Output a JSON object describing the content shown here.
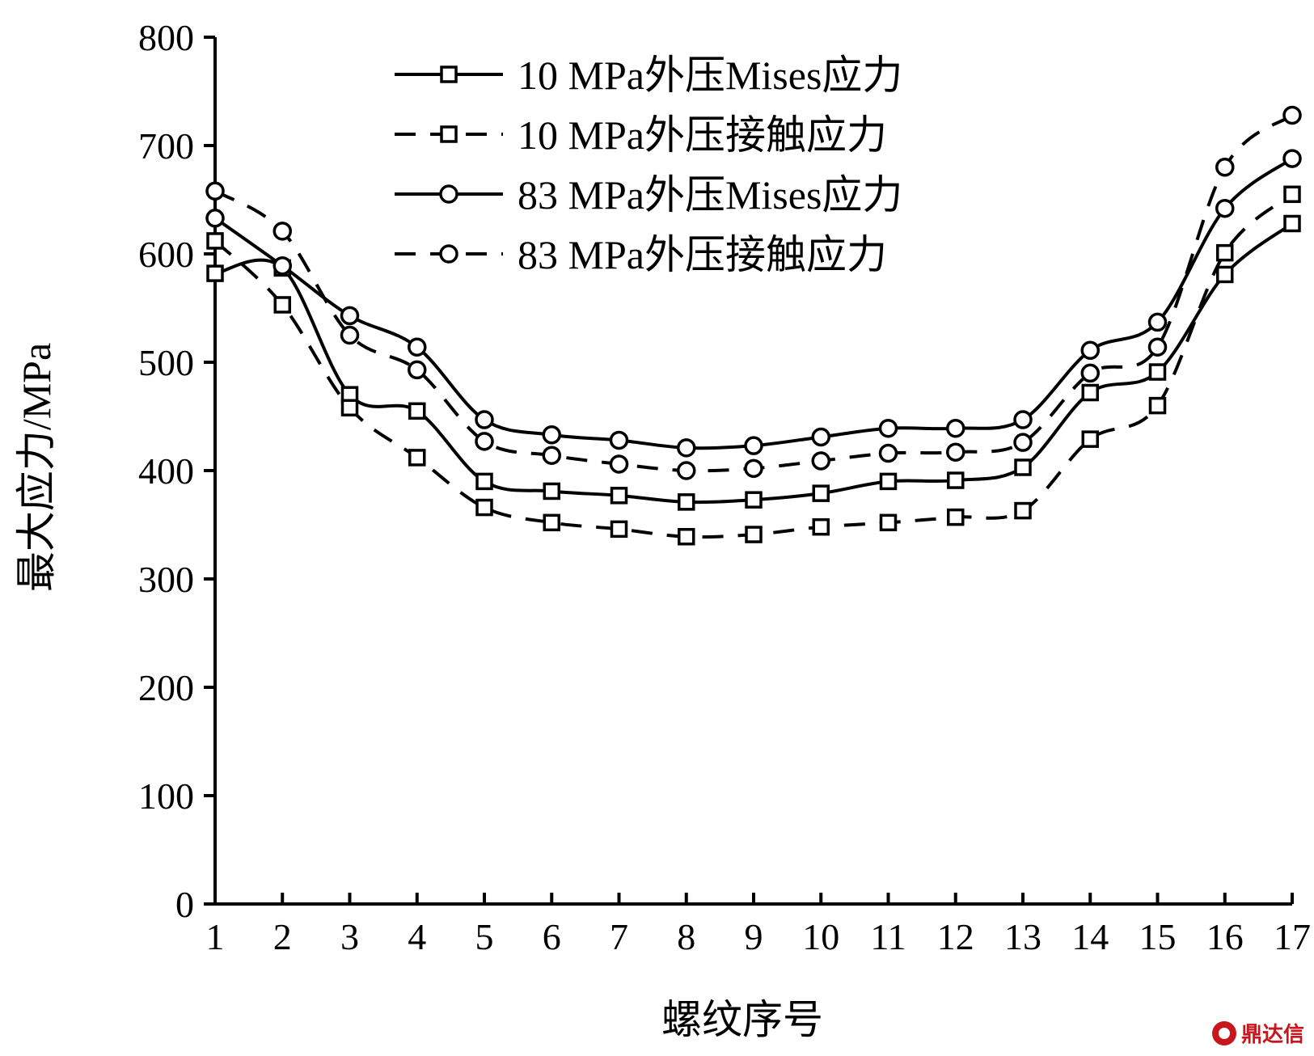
{
  "chart_data": {
    "type": "line",
    "xlabel": "螺纹序号",
    "ylabel": "最大应力/MPa",
    "x": [
      1,
      2,
      3,
      4,
      5,
      6,
      7,
      8,
      9,
      10,
      11,
      12,
      13,
      14,
      15,
      16,
      17
    ],
    "xlim": [
      1,
      17
    ],
    "ylim": [
      0,
      800
    ],
    "yticks": [
      0,
      100,
      200,
      300,
      400,
      500,
      600,
      700,
      800
    ],
    "grid": false,
    "legend_position": "top-center",
    "series": [
      {
        "name": "10 MPa外压Mises应力",
        "line_style": "solid",
        "marker": "square",
        "values": [
          582,
          587,
          470,
          455,
          390,
          381,
          377,
          371,
          373,
          379,
          390,
          391,
          403,
          472,
          491,
          581,
          628
        ]
      },
      {
        "name": "10 MPa外压接触应力",
        "line_style": "dashed",
        "marker": "square",
        "values": [
          612,
          553,
          458,
          412,
          366,
          352,
          346,
          339,
          341,
          348,
          352,
          357,
          363,
          429,
          460,
          601,
          655
        ]
      },
      {
        "name": "83 MPa外压Mises应力",
        "line_style": "solid",
        "marker": "circle",
        "values": [
          633,
          589,
          543,
          514,
          447,
          433,
          428,
          421,
          423,
          431,
          439,
          439,
          447,
          511,
          537,
          642,
          688
        ]
      },
      {
        "name": "83 MPa外压接触应力",
        "line_style": "dashed",
        "marker": "circle",
        "values": [
          658,
          621,
          525,
          493,
          427,
          414,
          406,
          400,
          402,
          409,
          416,
          417,
          426,
          490,
          514,
          680,
          728
        ]
      }
    ]
  },
  "watermark": {
    "text": "鼎达信",
    "color": "#c8161d"
  }
}
